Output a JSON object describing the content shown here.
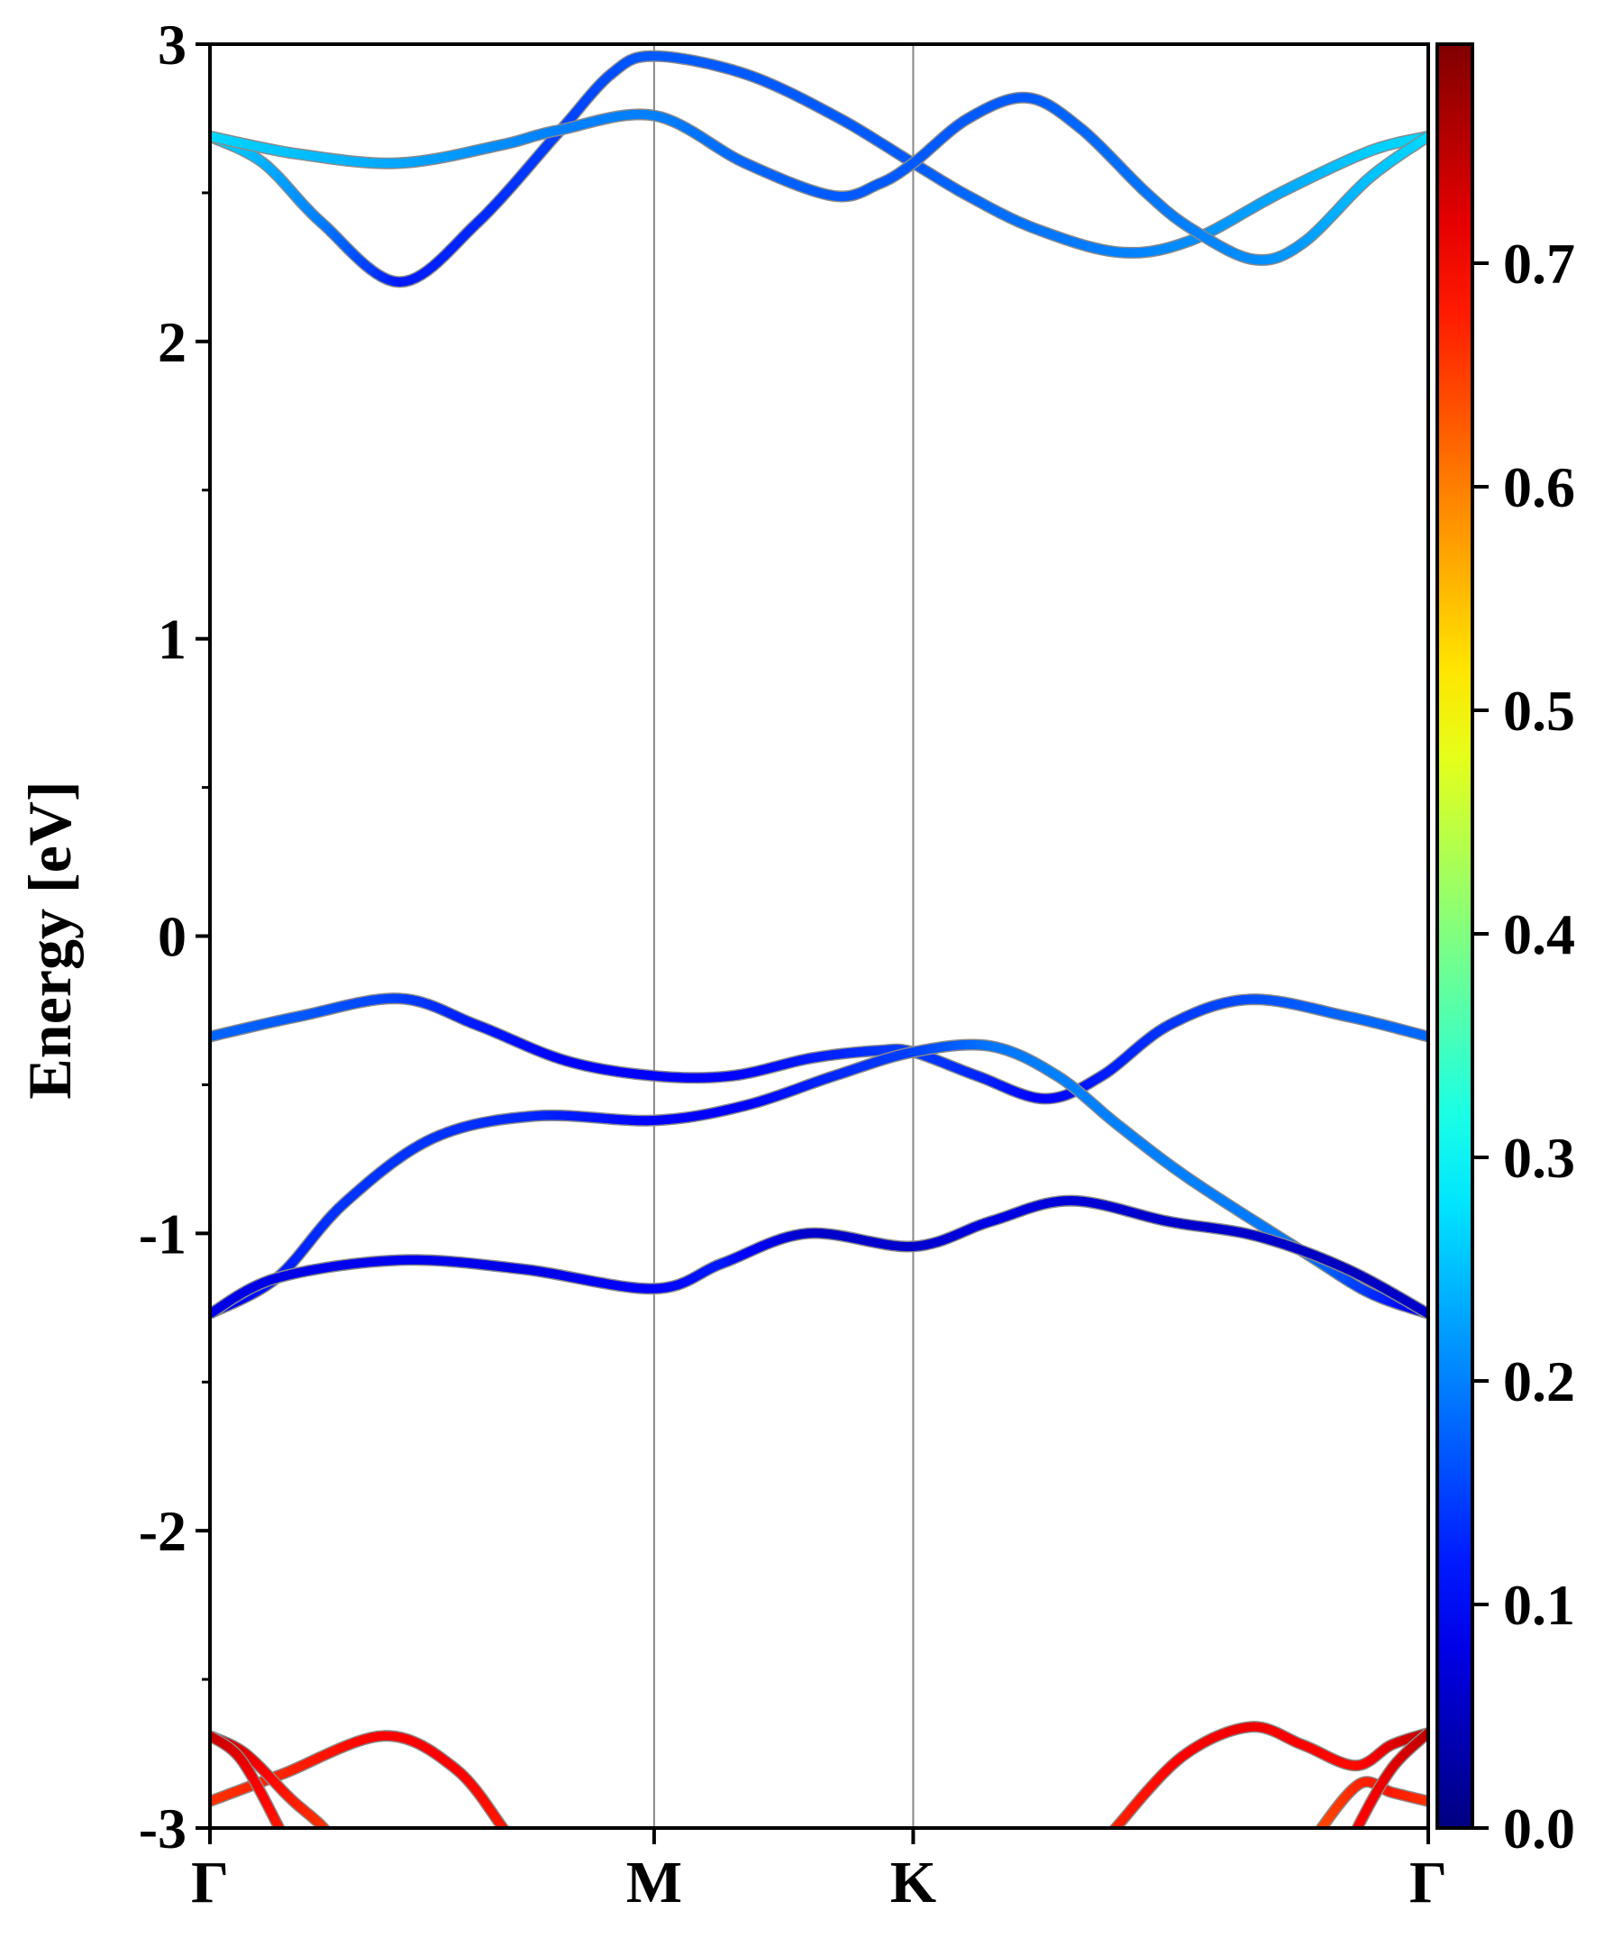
{
  "chart_data": {
    "type": "line",
    "title": "",
    "xlabel": "",
    "ylabel": "Energy [eV]",
    "ylim": [
      -3,
      3
    ],
    "yticks": [
      "3",
      "2",
      "1",
      "0",
      "-1",
      "-2",
      "-3"
    ],
    "ytick_values": [
      3,
      2,
      1,
      0,
      -1,
      -2,
      -3
    ],
    "kpoints": [
      {
        "label": "Γ",
        "k": 0
      },
      {
        "label": "M",
        "k": 0.996
      },
      {
        "label": "K",
        "k": 1.577
      },
      {
        "label": "Γ",
        "k": 2.732
      }
    ],
    "xlim": [
      0,
      2.732
    ],
    "colorbar": {
      "cmap": "jet",
      "vmin": 0.0,
      "vmax": 0.798,
      "ticks": [
        "0.0",
        "0.1",
        "0.2",
        "0.3",
        "0.4",
        "0.5",
        "0.6",
        "0.7"
      ],
      "tick_values": [
        0,
        0.1,
        0.2,
        0.3,
        0.4,
        0.5,
        0.6,
        0.7
      ]
    },
    "point_format": "[k, energy_eV, weight]",
    "bands": [
      {
        "name": "conduction-band-1",
        "points": [
          [
            0,
            2.69,
            0.27
          ],
          [
            0.12,
            2.6,
            0.24
          ],
          [
            0.25,
            2.4,
            0.2
          ],
          [
            0.425,
            2.2,
            0.12
          ],
          [
            0.6,
            2.4,
            0.13
          ],
          [
            0.78,
            2.7,
            0.15
          ],
          [
            0.9,
            2.9,
            0.16
          ],
          [
            0.996,
            2.96,
            0.17
          ],
          [
            1.2,
            2.9,
            0.17
          ],
          [
            1.4,
            2.76,
            0.17
          ],
          [
            1.577,
            2.6,
            0.17
          ],
          [
            1.7,
            2.49,
            0.18
          ],
          [
            1.85,
            2.38,
            0.19
          ],
          [
            2.04,
            2.3,
            0.2
          ],
          [
            2.2,
            2.34,
            0.21
          ],
          [
            2.4,
            2.5,
            0.23
          ],
          [
            2.6,
            2.64,
            0.26
          ],
          [
            2.732,
            2.69,
            0.27
          ]
        ]
      },
      {
        "name": "conduction-band-2",
        "points": [
          [
            0,
            2.69,
            0.27
          ],
          [
            0.2,
            2.63,
            0.25
          ],
          [
            0.425,
            2.6,
            0.23
          ],
          [
            0.65,
            2.66,
            0.21
          ],
          [
            0.78,
            2.71,
            0.2
          ],
          [
            0.996,
            2.76,
            0.2
          ],
          [
            1.2,
            2.6,
            0.18
          ],
          [
            1.397,
            2.49,
            0.17
          ],
          [
            1.5,
            2.53,
            0.17
          ],
          [
            1.577,
            2.6,
            0.17
          ],
          [
            1.7,
            2.75,
            0.17
          ],
          [
            1.831,
            2.82,
            0.17
          ],
          [
            1.95,
            2.72,
            0.18
          ],
          [
            2.1,
            2.5,
            0.19
          ],
          [
            2.2,
            2.38,
            0.2
          ],
          [
            2.34,
            2.276,
            0.21
          ],
          [
            2.45,
            2.33,
            0.22
          ],
          [
            2.6,
            2.55,
            0.25
          ],
          [
            2.732,
            2.69,
            0.27
          ]
        ]
      },
      {
        "name": "valence-band-1",
        "points": [
          [
            0,
            -0.338,
            0.18
          ],
          [
            0.2,
            -0.27,
            0.17
          ],
          [
            0.425,
            -0.21,
            0.15
          ],
          [
            0.6,
            -0.3,
            0.12
          ],
          [
            0.8,
            -0.42,
            0.1
          ],
          [
            0.996,
            -0.47,
            0.1
          ],
          [
            1.17,
            -0.47,
            0.1
          ],
          [
            1.35,
            -0.41,
            0.12
          ],
          [
            1.5,
            -0.385,
            0.14
          ],
          [
            1.577,
            -0.39,
            0.15
          ],
          [
            1.72,
            -0.47,
            0.13
          ],
          [
            1.873,
            -0.547,
            0.1
          ],
          [
            2.0,
            -0.47,
            0.12
          ],
          [
            2.15,
            -0.3,
            0.14
          ],
          [
            2.33,
            -0.213,
            0.16
          ],
          [
            2.55,
            -0.27,
            0.18
          ],
          [
            2.732,
            -0.338,
            0.18
          ]
        ]
      },
      {
        "name": "valence-band-2",
        "points": [
          [
            0,
            -1.27,
            0.08
          ],
          [
            0.15,
            -1.15,
            0.12
          ],
          [
            0.3,
            -0.9,
            0.14
          ],
          [
            0.5,
            -0.68,
            0.14
          ],
          [
            0.73,
            -0.605,
            0.13
          ],
          [
            0.996,
            -0.62,
            0.1
          ],
          [
            1.2,
            -0.57,
            0.1
          ],
          [
            1.4,
            -0.47,
            0.13
          ],
          [
            1.577,
            -0.39,
            0.15
          ],
          [
            1.75,
            -0.37,
            0.19
          ],
          [
            1.9,
            -0.47,
            0.2
          ],
          [
            2.04,
            -0.64,
            0.2
          ],
          [
            2.2,
            -0.82,
            0.2
          ],
          [
            2.46,
            -1.07,
            0.19
          ],
          [
            2.6,
            -1.2,
            0.14
          ],
          [
            2.732,
            -1.27,
            0.08
          ]
        ]
      },
      {
        "name": "valence-band-3",
        "points": [
          [
            0,
            -1.27,
            0.08
          ],
          [
            0.15,
            -1.15,
            0.08
          ],
          [
            0.425,
            -1.09,
            0.09
          ],
          [
            0.7,
            -1.12,
            0.08
          ],
          [
            0.996,
            -1.186,
            0.1
          ],
          [
            1.15,
            -1.1,
            0.12
          ],
          [
            1.34,
            -1.0,
            0.06
          ],
          [
            1.577,
            -1.044,
            0.06
          ],
          [
            1.75,
            -0.96,
            0.08
          ],
          [
            1.93,
            -0.89,
            0.07
          ],
          [
            2.15,
            -0.96,
            0.06
          ],
          [
            2.35,
            -1.01,
            0.06
          ],
          [
            2.55,
            -1.12,
            0.05
          ],
          [
            2.732,
            -1.27,
            0.06
          ]
        ]
      },
      {
        "name": "deep-band-1",
        "points": [
          [
            0,
            -2.91,
            0.66
          ],
          [
            0.16,
            -2.82,
            0.67
          ],
          [
            0.39,
            -2.69,
            0.7
          ],
          [
            0.55,
            -2.8,
            0.7
          ],
          [
            0.657,
            -3.0,
            0.68
          ],
          [
            0.7,
            -3.1,
            0.67
          ]
        ]
      },
      {
        "name": "deep-band-2",
        "points": [
          [
            0,
            -2.69,
            0.75
          ],
          [
            0.08,
            -2.75,
            0.72
          ],
          [
            0.18,
            -2.9,
            0.68
          ],
          [
            0.255,
            -3.0,
            0.66
          ],
          [
            0.3,
            -3.1,
            0.65
          ]
        ]
      },
      {
        "name": "deep-band-3",
        "points": [
          [
            0,
            -2.69,
            0.75
          ],
          [
            0.07,
            -2.77,
            0.72
          ],
          [
            0.155,
            -3.0,
            0.68
          ],
          [
            0.18,
            -3.1,
            0.66
          ]
        ]
      },
      {
        "name": "deep-band-4",
        "points": [
          [
            1.98,
            -3.1,
            0.66
          ],
          [
            2.031,
            -3.0,
            0.67
          ],
          [
            2.18,
            -2.76,
            0.7
          ],
          [
            2.332,
            -2.66,
            0.71
          ],
          [
            2.45,
            -2.72,
            0.7
          ],
          [
            2.569,
            -2.79,
            0.69
          ],
          [
            2.65,
            -2.72,
            0.72
          ],
          [
            2.732,
            -2.68,
            0.75
          ]
        ]
      },
      {
        "name": "deep-band-5",
        "points": [
          [
            2.46,
            -3.1,
            0.64
          ],
          [
            2.493,
            -3.0,
            0.64
          ],
          [
            2.58,
            -2.85,
            0.67
          ],
          [
            2.65,
            -2.88,
            0.68
          ],
          [
            2.732,
            -2.91,
            0.66
          ]
        ]
      },
      {
        "name": "deep-band-6",
        "points": [
          [
            2.55,
            -3.1,
            0.68
          ],
          [
            2.573,
            -3.0,
            0.69
          ],
          [
            2.65,
            -2.8,
            0.72
          ],
          [
            2.732,
            -2.68,
            0.75
          ]
        ]
      }
    ]
  }
}
